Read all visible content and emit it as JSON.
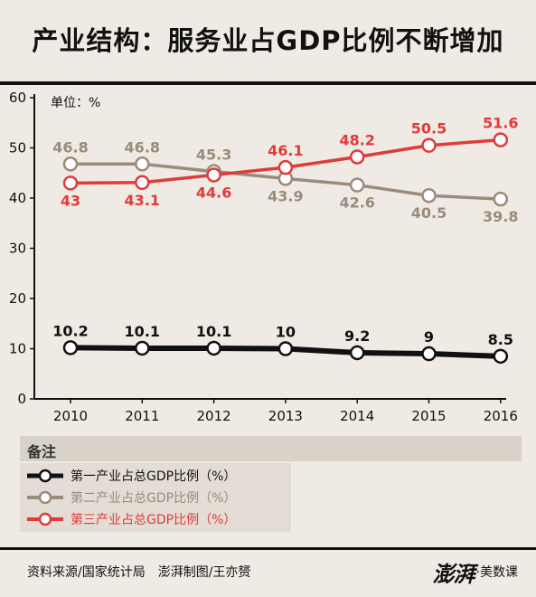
{
  "title": "产业结构：服务业占GDP比例不断增加",
  "chart_data": {
    "type": "line",
    "unit_label": "单位：%",
    "x": [
      "2010",
      "2011",
      "2012",
      "2013",
      "2014",
      "2015",
      "2016"
    ],
    "ylim": [
      0,
      60
    ],
    "yticks": [
      0,
      10,
      20,
      30,
      40,
      50,
      60
    ],
    "grid": false,
    "series": [
      {
        "name": "第一产业占总GDP比例（%）",
        "color": "#111111",
        "values": [
          10.2,
          10.1,
          10.1,
          10.0,
          9.2,
          9.0,
          8.5
        ],
        "labels": [
          "10.2",
          "10.1",
          "10.1",
          "10",
          "9.2",
          "9",
          "8.5"
        ]
      },
      {
        "name": "第二产业占总GDP比例（%）",
        "color": "#9a8b7a",
        "values": [
          46.8,
          46.8,
          45.3,
          43.9,
          42.6,
          40.5,
          39.8
        ],
        "labels": [
          "46.8",
          "46.8",
          "45.3",
          "43.9",
          "42.6",
          "40.5",
          "39.8"
        ]
      },
      {
        "name": "第三产业占总GDP比例（%）",
        "color": "#e03a3a",
        "values": [
          43.0,
          43.1,
          44.6,
          46.1,
          48.2,
          50.5,
          51.6
        ],
        "labels": [
          "43",
          "43.1",
          "44.6",
          "46.1",
          "48.2",
          "50.5",
          "51.6"
        ]
      }
    ]
  },
  "note": {
    "title": "备注"
  },
  "footer": {
    "source": "资料来源/国家统计局　澎湃制图/王亦赟",
    "logo_brand": "澎湃",
    "logo_suffix": "·美数课"
  }
}
